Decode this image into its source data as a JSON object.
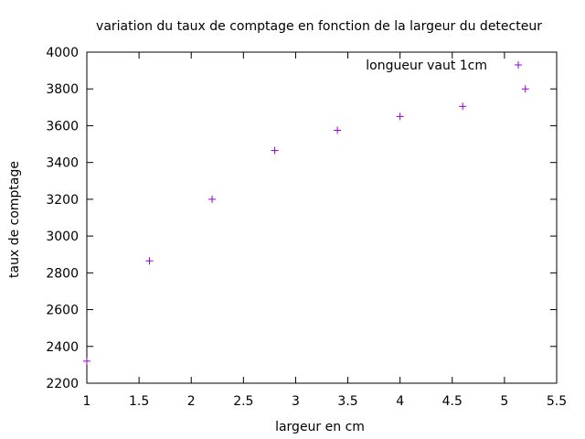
{
  "chart_data": {
    "type": "scatter",
    "title": "variation du taux de comptage en fonction de la largeur du detecteur",
    "xlabel": "largeur en cm",
    "ylabel": "taux de comptage",
    "xlim": [
      1,
      5.5
    ],
    "ylim": [
      2200,
      4000
    ],
    "xticks": [
      1,
      1.5,
      2,
      2.5,
      3,
      3.5,
      4,
      4.5,
      5,
      5.5
    ],
    "xtick_labels": [
      "1",
      "1.5",
      "2",
      "2.5",
      "3",
      "3.5",
      "4",
      "4.5",
      "5",
      "5.5"
    ],
    "yticks": [
      2200,
      2400,
      2600,
      2800,
      3000,
      3200,
      3400,
      3600,
      3800,
      4000
    ],
    "ytick_labels": [
      "2200",
      "2400",
      "2600",
      "2800",
      "3000",
      "3200",
      "3400",
      "3600",
      "3800",
      "4000"
    ],
    "grid": false,
    "legend_position": "top-right",
    "series": [
      {
        "name": "longueur vaut 1cm",
        "color": "#9400d3",
        "marker": "plus",
        "x": [
          1,
          1.6,
          2.2,
          2.8,
          3.4,
          4,
          4.6,
          5.2
        ],
        "y": [
          2320,
          2865,
          3200,
          3465,
          3575,
          3650,
          3705,
          3800
        ]
      }
    ]
  }
}
